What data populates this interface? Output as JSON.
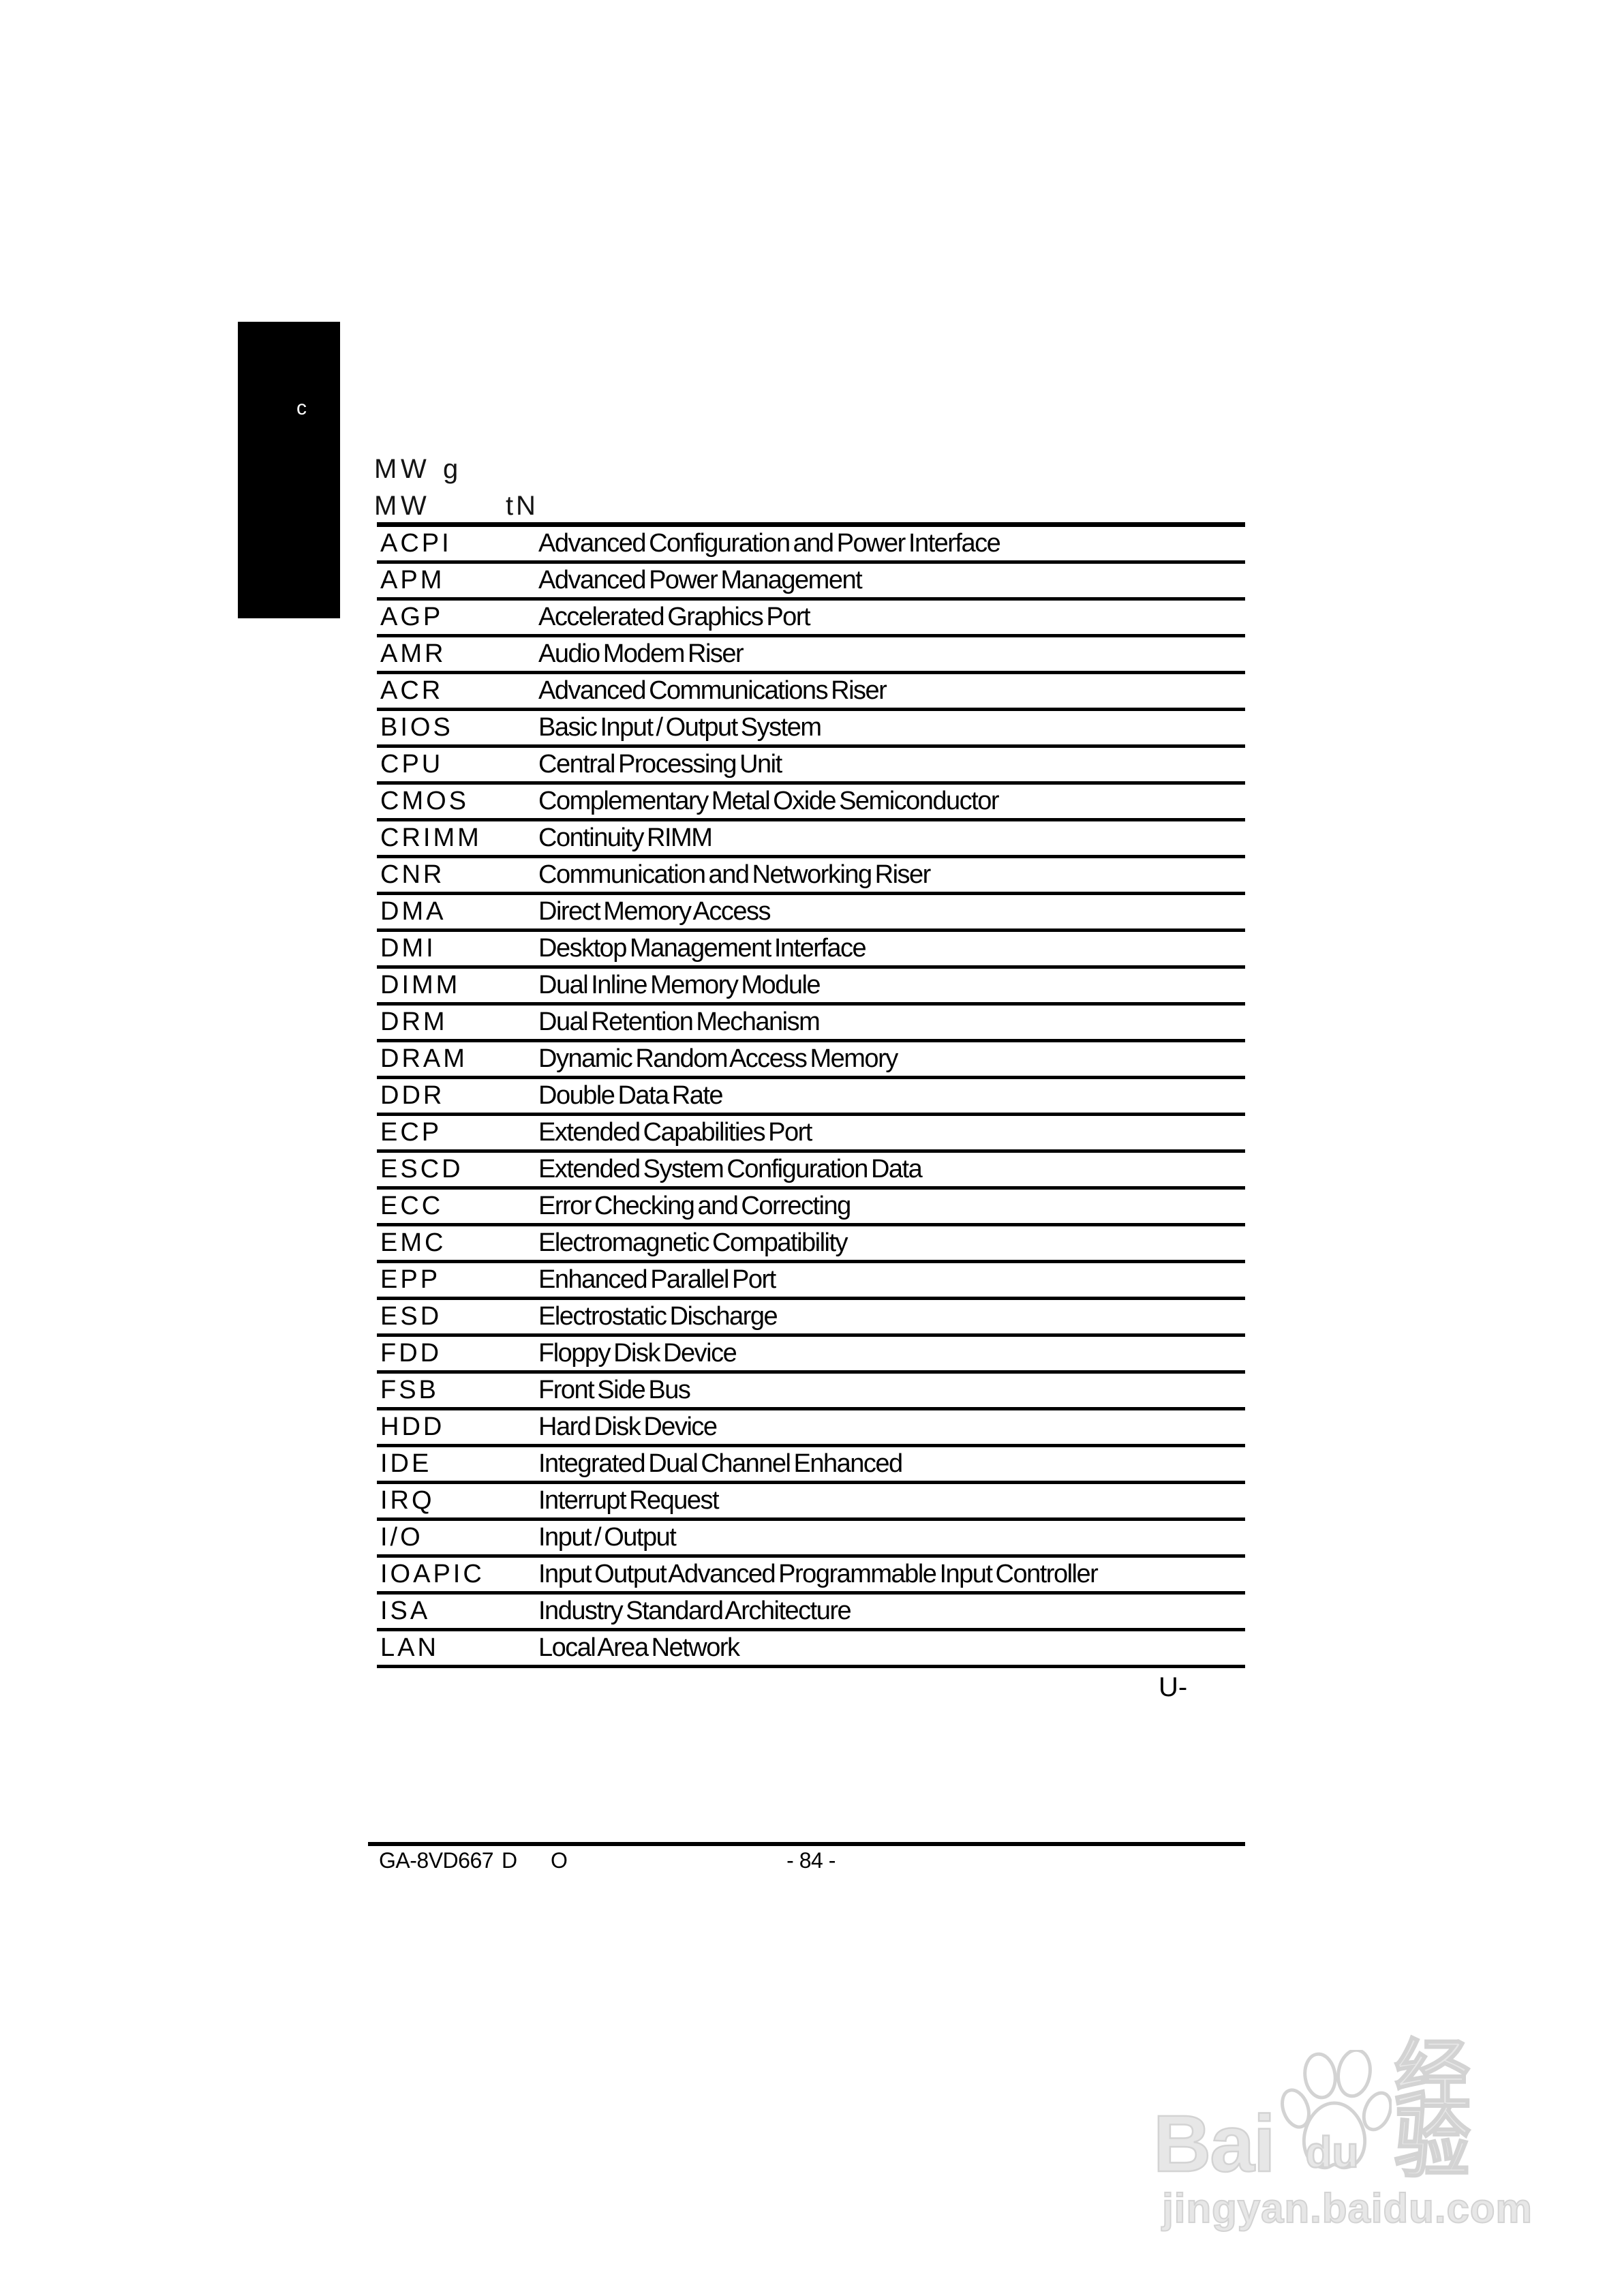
{
  "tab": {
    "letter": "c"
  },
  "header_ghost": {
    "l1_m": "M",
    "l1_w": "W",
    "l1_g": "g",
    "l2_m": "M",
    "l2_w": "W",
    "l2_t": "t",
    "l2_n": "N"
  },
  "table": {
    "rows": [
      {
        "acronym": "ACPI",
        "meaning": "Advanced Configuration and Power Interface"
      },
      {
        "acronym": "APM",
        "meaning": "Advanced Power Management"
      },
      {
        "acronym": "AGP",
        "meaning": "Accelerated Graphics Port"
      },
      {
        "acronym": "AMR",
        "meaning": "Audio Modem Riser"
      },
      {
        "acronym": "ACR",
        "meaning": "Advanced Communications Riser"
      },
      {
        "acronym": "BIOS",
        "meaning": "Basic Input / Output System"
      },
      {
        "acronym": "CPU",
        "meaning": "Central Processing Unit"
      },
      {
        "acronym": "CMOS",
        "meaning": "Complementary Metal Oxide Semiconductor"
      },
      {
        "acronym": "CRIMM",
        "meaning": "Continuity RIMM"
      },
      {
        "acronym": "CNR",
        "meaning": "Communication and Networking Riser"
      },
      {
        "acronym": "DMA",
        "meaning": "Direct Memory Access"
      },
      {
        "acronym": "DMI",
        "meaning": "Desktop Management Interface"
      },
      {
        "acronym": "DIMM",
        "meaning": "Dual Inline Memory Module"
      },
      {
        "acronym": "DRM",
        "meaning": "Dual Retention Mechanism"
      },
      {
        "acronym": "DRAM",
        "meaning": "Dynamic Random Access Memory"
      },
      {
        "acronym": "DDR",
        "meaning": "Double Data Rate"
      },
      {
        "acronym": "ECP",
        "meaning": "Extended Capabilities Port"
      },
      {
        "acronym": "ESCD",
        "meaning": "Extended System Configuration Data"
      },
      {
        "acronym": "ECC",
        "meaning": "Error Checking and Correcting"
      },
      {
        "acronym": "EMC",
        "meaning": "Electromagnetic Compatibility"
      },
      {
        "acronym": "EPP",
        "meaning": "Enhanced Parallel Port"
      },
      {
        "acronym": "ESD",
        "meaning": "Electrostatic Discharge"
      },
      {
        "acronym": "FDD",
        "meaning": "Floppy Disk Device"
      },
      {
        "acronym": "FSB",
        "meaning": "Front Side Bus"
      },
      {
        "acronym": "HDD",
        "meaning": "Hard Disk Device"
      },
      {
        "acronym": "IDE",
        "meaning": "Integrated Dual Channel Enhanced"
      },
      {
        "acronym": "IRQ",
        "meaning": "Interrupt Request"
      },
      {
        "acronym": "I/O",
        "meaning": "Input / Output"
      },
      {
        "acronym": "IOAPIC",
        "meaning": "Input Output Advanced Programmable Input Controller"
      },
      {
        "acronym": "ISA",
        "meaning": "Industry Standard Architecture"
      },
      {
        "acronym": "LAN",
        "meaning": "Local Area Network"
      }
    ]
  },
  "note_fragment": "U-",
  "footer": {
    "model": "GA-8VD667",
    "fragment_d": "D",
    "fragment_o": "O",
    "page_number": "- 84 -"
  },
  "watermark": {
    "bai": "Bai",
    "du": "du",
    "cn": "经验",
    "url": "jingyan.baidu.com",
    "color": "#d3d3d3"
  }
}
